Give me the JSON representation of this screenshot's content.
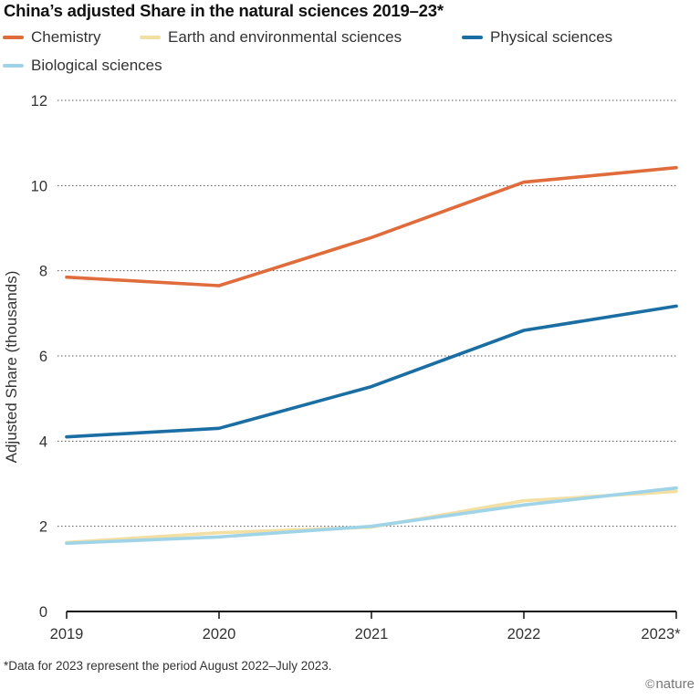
{
  "chart_data": {
    "type": "line",
    "title": "China’s adjusted Share in the natural sciences 2019–23*",
    "xlabel": "",
    "ylabel": "Adjusted Share (thousands)",
    "categories": [
      "2019",
      "2020",
      "2021",
      "2022",
      "2023*"
    ],
    "ylim": [
      0,
      12
    ],
    "yticks": [
      0,
      2,
      4,
      6,
      8,
      10,
      12
    ],
    "grid": "horizontal dotted",
    "legend_position": "top",
    "series": [
      {
        "name": "Chemistry",
        "color": "#e06c3c",
        "values": [
          7.85,
          7.65,
          8.78,
          10.08,
          10.42
        ]
      },
      {
        "name": "Earth and environmental sciences",
        "color": "#f3dfa2",
        "values": [
          1.62,
          1.85,
          1.98,
          2.6,
          2.82
        ]
      },
      {
        "name": "Physical sciences",
        "color": "#1a6ea3",
        "values": [
          4.1,
          4.3,
          5.28,
          6.6,
          7.17
        ]
      },
      {
        "name": "Biological sciences",
        "color": "#9fd4e8",
        "values": [
          1.6,
          1.75,
          2.0,
          2.5,
          2.9
        ]
      }
    ]
  },
  "footnote": "*Data for 2023 represent the period August 2022–July 2023.",
  "credit": {
    "symbol": "©",
    "name": "nature"
  }
}
